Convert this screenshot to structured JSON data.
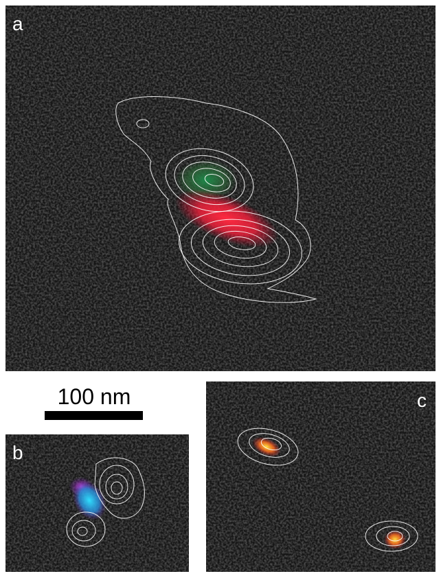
{
  "panels": {
    "a": {
      "label": "a"
    },
    "b": {
      "label": "b"
    },
    "c": {
      "label": "c"
    }
  },
  "scale_bar": {
    "label": "100 nm"
  }
}
